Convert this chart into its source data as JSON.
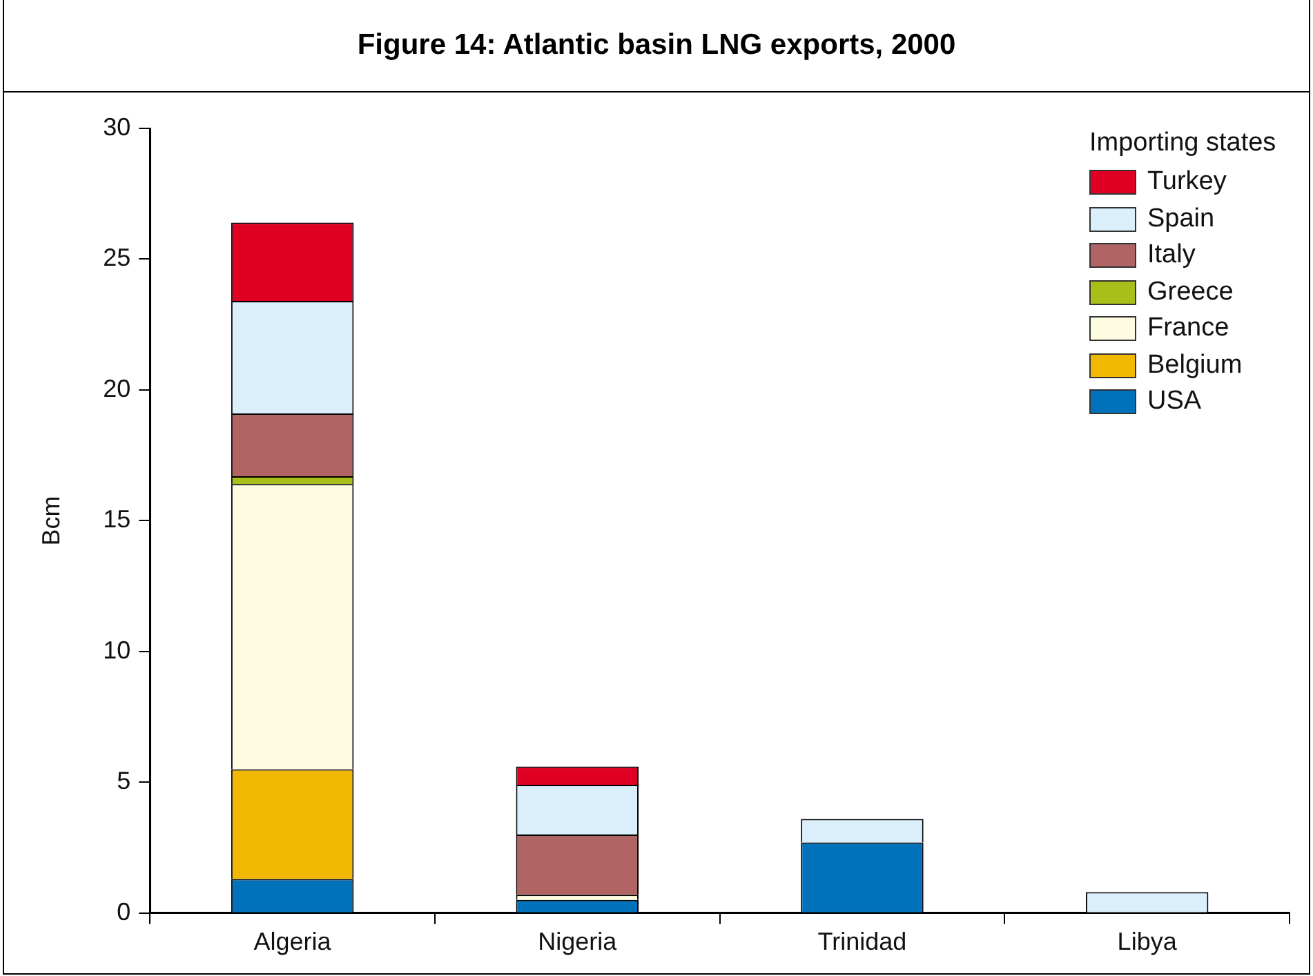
{
  "chart_data": {
    "type": "bar",
    "title": "Figure 14: Atlantic basin LNG exports, 2000",
    "ylabel": "Bcm",
    "legend_title": "Importing states",
    "categories": [
      "Algeria",
      "Nigeria",
      "Trinidad",
      "Libya"
    ],
    "stacked": true,
    "ylim": [
      0,
      30
    ],
    "yticks": [
      0,
      5,
      10,
      15,
      20,
      25,
      30
    ],
    "grid": false,
    "legend": "top right",
    "series": [
      {
        "name": "USA",
        "color": "#0072bc",
        "values": [
          1.3,
          0.5,
          2.7,
          null
        ]
      },
      {
        "name": "Belgium",
        "color": "#f0b800",
        "values": [
          4.2,
          null,
          null,
          null
        ]
      },
      {
        "name": "France",
        "color": "#fdfbe0",
        "values": [
          10.9,
          0.2,
          null,
          null
        ]
      },
      {
        "name": "Greece",
        "color": "#a8bf1a",
        "values": [
          0.3,
          null,
          null,
          null
        ]
      },
      {
        "name": "Italy",
        "color": "#b06464",
        "values": [
          2.4,
          2.3,
          null,
          null
        ]
      },
      {
        "name": "Spain",
        "color": "#dbeefb",
        "values": [
          4.3,
          1.9,
          0.9,
          0.8
        ]
      },
      {
        "name": "Turkey",
        "color": "#e00024",
        "values": [
          3.0,
          0.7,
          null,
          null
        ]
      }
    ]
  }
}
